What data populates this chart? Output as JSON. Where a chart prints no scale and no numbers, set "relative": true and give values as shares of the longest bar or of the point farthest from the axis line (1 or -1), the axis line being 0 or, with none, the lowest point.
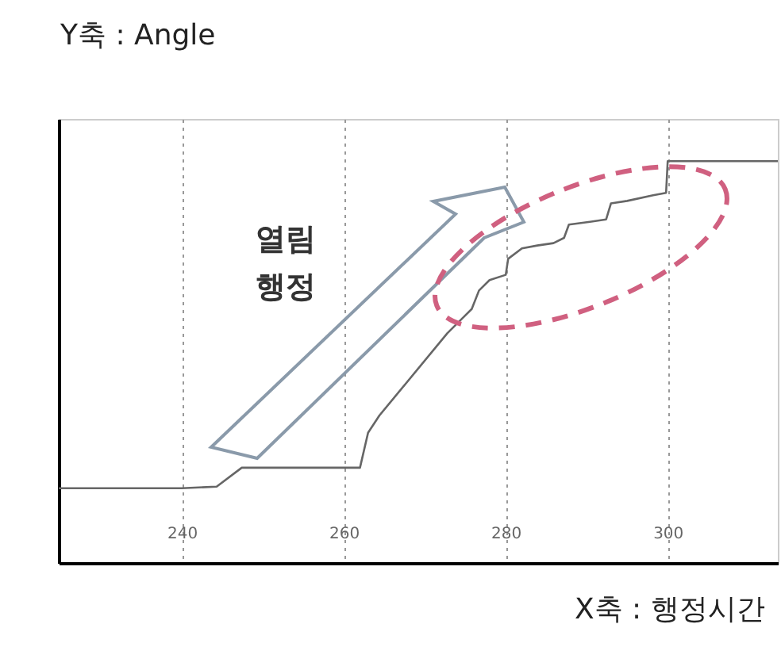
{
  "chart_data": {
    "type": "line",
    "relative": true,
    "xlabel": "X축 : 행정시간",
    "ylabel": "Y축 : Angle",
    "annotations": [
      "열림 행정"
    ],
    "xlim": [
      224.8,
      313.6
    ],
    "xticks": [
      240,
      260,
      280,
      300
    ],
    "grid": "x",
    "marker": "none",
    "line_style": "solid",
    "series": [
      {
        "color": "#666666",
        "x": [
          224.8,
          240,
          244.3,
          247.4,
          249.4,
          262.0,
          263.0,
          264.4,
          272.8,
          274.8,
          275.8,
          276.7,
          278.0,
          280.0,
          280.3,
          282.0,
          283.9,
          285.9,
          287.2,
          287.8,
          290.4,
          292.4,
          293.0,
          295.0,
          298.2,
          299.8,
          300.0,
          313.6
        ],
        "values": [
          0.186,
          0.186,
          0.19,
          0.237,
          0.237,
          0.237,
          0.324,
          0.367,
          0.572,
          0.612,
          0.632,
          0.678,
          0.704,
          0.717,
          0.757,
          0.783,
          0.79,
          0.796,
          0.809,
          0.842,
          0.849,
          0.855,
          0.895,
          0.901,
          0.915,
          0.921,
          1.0,
          1.0
        ]
      }
    ]
  }
}
